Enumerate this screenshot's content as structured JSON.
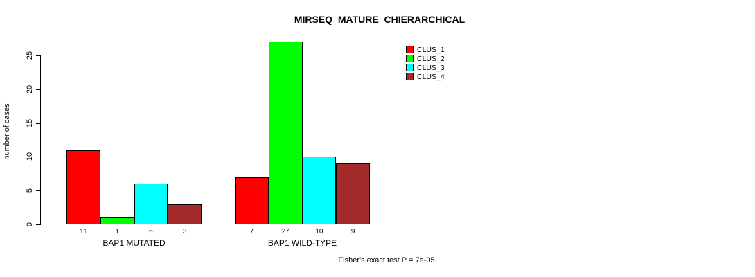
{
  "title": "MIRSEQ_MATURE_CHIERARCHICAL",
  "footer": "Fisher's exact test P = 7e-05",
  "chart_data": {
    "type": "bar",
    "title": "MIRSEQ_MATURE_CHIERARCHICAL",
    "xlabel": "",
    "ylabel": "number of cases",
    "categories": [
      "BAP1 MUTATED",
      "BAP1 WILD-TYPE"
    ],
    "series": [
      {
        "name": "CLUS_1",
        "color": "#FF0000",
        "values": [
          11,
          7
        ]
      },
      {
        "name": "CLUS_2",
        "color": "#00FF00",
        "values": [
          1,
          27
        ]
      },
      {
        "name": "CLUS_3",
        "color": "#00FFFF",
        "values": [
          6,
          10
        ]
      },
      {
        "name": "CLUS_4",
        "color": "#A52A2A",
        "values": [
          3,
          9
        ]
      }
    ],
    "bar_value_labels": [
      [
        11,
        1,
        6,
        3
      ],
      [
        7,
        27,
        10,
        9
      ]
    ],
    "yticks": [
      0,
      5,
      10,
      15,
      20,
      25
    ],
    "ylim": [
      0,
      27
    ],
    "grid": false,
    "legend_position": "top-right",
    "legend_entries": [
      "CLUS_1",
      "CLUS_2",
      "CLUS_3",
      "CLUS_4"
    ],
    "annotation": "Fisher's exact test P = 7e-05"
  }
}
